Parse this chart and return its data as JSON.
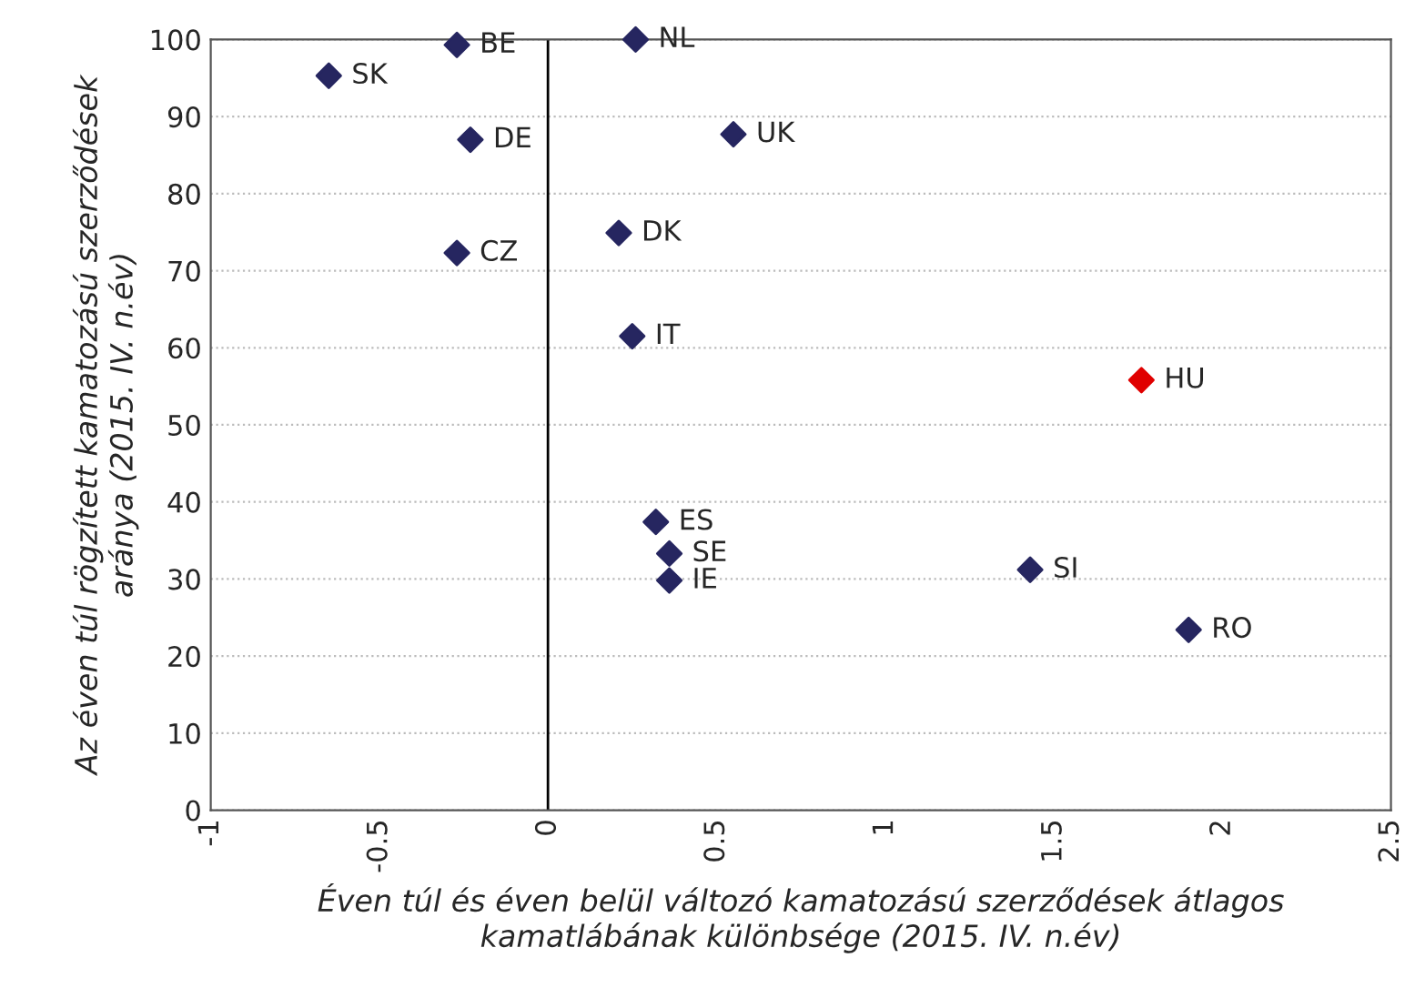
{
  "chart_data": {
    "type": "scatter",
    "x": [
      -0.65,
      -0.27,
      -0.23,
      -0.27,
      0.26,
      0.55,
      0.21,
      0.25,
      1.76,
      0.32,
      0.36,
      0.36,
      1.43,
      1.9
    ],
    "values": [
      95.3,
      99.3,
      87,
      72.3,
      100,
      87.7,
      74.9,
      61.5,
      55.8,
      37.4,
      33.3,
      29.8,
      31.2,
      23.4
    ],
    "colors": [
      "#262660",
      "#262660",
      "#262660",
      "#262660",
      "#262660",
      "#262660",
      "#262660",
      "#262660",
      "#e00000",
      "#262660",
      "#262660",
      "#262660",
      "#262660",
      "#262660"
    ],
    "annotations": [
      {
        "text": "SK",
        "x": -0.65,
        "y": 95.3
      },
      {
        "text": "BE",
        "x": -0.27,
        "y": 99.3
      },
      {
        "text": "DE",
        "x": -0.23,
        "y": 87
      },
      {
        "text": "CZ",
        "x": -0.27,
        "y": 72.3
      },
      {
        "text": "NL",
        "x": 0.26,
        "y": 100
      },
      {
        "text": "UK",
        "x": 0.55,
        "y": 87.7
      },
      {
        "text": "DK",
        "x": 0.21,
        "y": 74.9
      },
      {
        "text": "IT",
        "x": 0.25,
        "y": 61.5
      },
      {
        "text": "HU",
        "x": 1.76,
        "y": 55.8
      },
      {
        "text": "ES",
        "x": 0.32,
        "y": 37.4
      },
      {
        "text": "SE",
        "x": 0.36,
        "y": 33.3
      },
      {
        "text": "IE",
        "x": 0.36,
        "y": 29.8
      },
      {
        "text": "SI",
        "x": 1.43,
        "y": 31.2
      },
      {
        "text": "RO",
        "x": 1.9,
        "y": 23.4
      }
    ],
    "xlabel": "Éven túl és éven belül változó kamatozású szerződések átlagos\nkamatlábának különbsége (2015. IV. n.év)",
    "ylabel": "Az éven túl rögzített kamatozású szerződések\naránya (2015. IV. n.év)",
    "xlim": [
      -1,
      2.5
    ],
    "xticks": [
      -1,
      -0.5,
      0,
      0.5,
      1,
      1.5,
      2,
      2.5
    ],
    "ylim": [
      0,
      100
    ],
    "yticks": [
      0,
      10,
      20,
      30,
      40,
      50,
      60,
      70,
      80,
      90,
      100
    ],
    "ref_lines": [
      {
        "axis": "x",
        "value": 0,
        "color": "#000000"
      }
    ],
    "grid": "y",
    "marker": "diamond",
    "legend": false
  }
}
